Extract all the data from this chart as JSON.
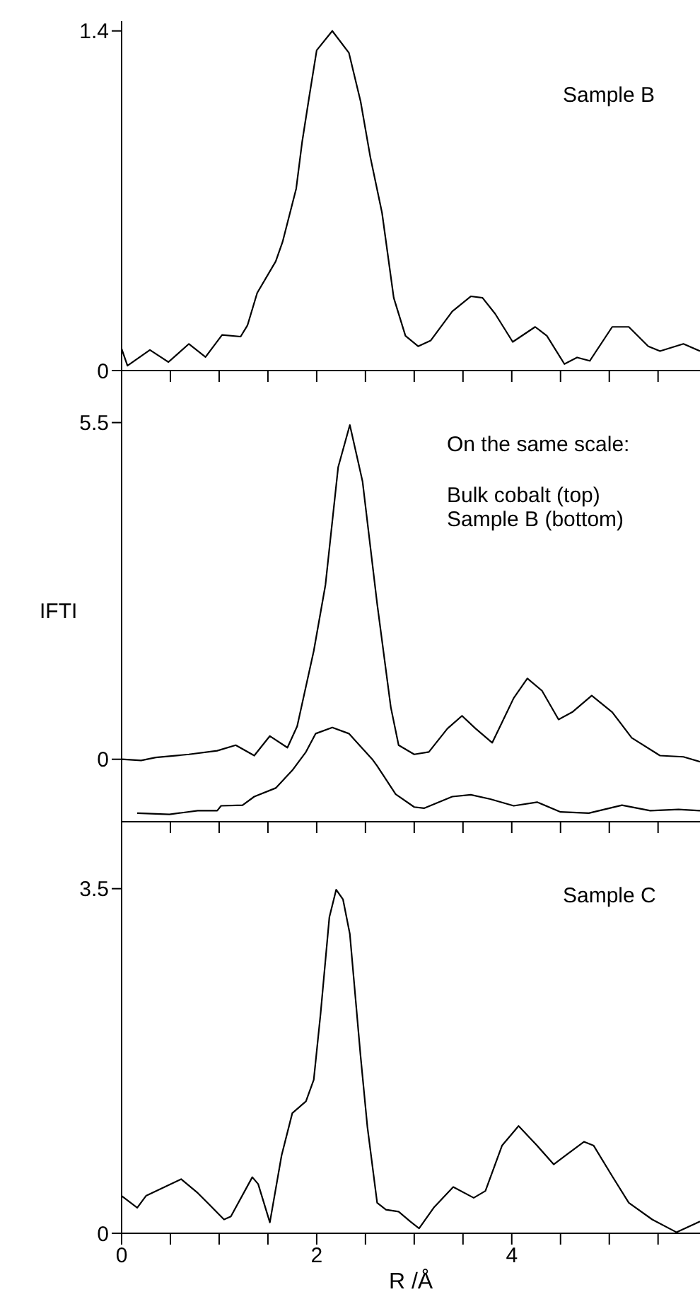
{
  "chart_data": [
    {
      "type": "line",
      "xlim": [
        0,
        5.93
      ],
      "xticks": [
        {
          "value": 0,
          "label": null
        },
        {
          "value": 0.5,
          "label": null
        },
        {
          "value": 1,
          "label": null
        },
        {
          "value": 1.5,
          "label": null
        },
        {
          "value": 2,
          "label": null
        },
        {
          "value": 2.5,
          "label": null
        },
        {
          "value": 3,
          "label": null
        },
        {
          "value": 3.5,
          "label": null
        },
        {
          "value": 4,
          "label": null
        },
        {
          "value": 4.5,
          "label": null
        },
        {
          "value": 5,
          "label": null
        },
        {
          "value": 5.5,
          "label": null
        }
      ],
      "ylim": [
        0,
        1.44
      ],
      "yticks": [
        0,
        1.4
      ],
      "tick_labels": "y",
      "annotations": [
        "Sample B"
      ],
      "series": [
        {
          "color": "#000000",
          "x": [
            0,
            0.06,
            0.29,
            0.48,
            0.69,
            0.86,
            1.03,
            1.22,
            1.29,
            1.39,
            1.58,
            1.65,
            1.79,
            1.85,
            1.92,
            2.0,
            2.16,
            2.33,
            2.45,
            2.55,
            2.67,
            2.79,
            2.91,
            3.04,
            3.17,
            3.39,
            3.58,
            3.7,
            3.83,
            4.01,
            4.24,
            4.36,
            4.54,
            4.67,
            4.8,
            5.03,
            5.2,
            5.4,
            5.52,
            5.76,
            5.93
          ],
          "values": [
            0.09,
            0.02,
            0.085,
            0.035,
            0.11,
            0.056,
            0.147,
            0.14,
            0.186,
            0.32,
            0.45,
            0.53,
            0.75,
            0.94,
            1.12,
            1.32,
            1.4,
            1.31,
            1.11,
            0.88,
            0.65,
            0.3,
            0.143,
            0.1,
            0.124,
            0.244,
            0.306,
            0.3,
            0.234,
            0.118,
            0.18,
            0.143,
            0.027,
            0.054,
            0.04,
            0.18,
            0.18,
            0.1,
            0.08,
            0.11,
            0.08
          ]
        }
      ]
    },
    {
      "type": "line",
      "ylabel": "IFTI",
      "xlim": [
        0,
        5.93
      ],
      "xticks": [
        {
          "value": 0,
          "label": null
        },
        {
          "value": 0.5,
          "label": null
        },
        {
          "value": 1,
          "label": null
        },
        {
          "value": 1.5,
          "label": null
        },
        {
          "value": 2,
          "label": null
        },
        {
          "value": 2.5,
          "label": null
        },
        {
          "value": 3,
          "label": null
        },
        {
          "value": 3.5,
          "label": null
        },
        {
          "value": 4,
          "label": null
        },
        {
          "value": 4.5,
          "label": null
        },
        {
          "value": 5,
          "label": null
        },
        {
          "value": 5.5,
          "label": null
        }
      ],
      "ylim": [
        -1.02,
        6.35
      ],
      "yticks": [
        0,
        5.5
      ],
      "tick_labels": "y",
      "annotations": [
        "On the same scale:",
        "Bulk cobalt (top)",
        "Sample B (bottom)"
      ],
      "series": [
        {
          "color": "#000000",
          "x": [
            0,
            0.2,
            0.35,
            0.69,
            0.98,
            1.17,
            1.36,
            1.52,
            1.7,
            1.8,
            1.97,
            2.09,
            2.22,
            2.34,
            2.47,
            2.62,
            2.76,
            2.84,
            3.0,
            3.15,
            3.34,
            3.49,
            3.63,
            3.8,
            4.02,
            4.16,
            4.31,
            4.48,
            4.62,
            4.82,
            5.03,
            5.23,
            5.52,
            5.76,
            5.93
          ],
          "values": [
            0,
            -0.02,
            0.03,
            0.08,
            0.14,
            0.23,
            0.06,
            0.38,
            0.19,
            0.54,
            1.77,
            2.85,
            4.77,
            5.46,
            4.54,
            2.54,
            0.85,
            0.23,
            0.08,
            0.12,
            0.5,
            0.71,
            0.5,
            0.27,
            1.0,
            1.32,
            1.12,
            0.65,
            0.77,
            1.04,
            0.77,
            0.35,
            0.06,
            0.04,
            -0.04
          ]
        },
        {
          "color": "#000000",
          "x": [
            0.16,
            0.49,
            0.78,
            0.98,
            1.02,
            1.24,
            1.36,
            1.58,
            1.75,
            1.89,
            1.99,
            2.16,
            2.33,
            2.57,
            2.62,
            2.81,
            3.0,
            3.1,
            3.39,
            3.58,
            3.78,
            4.02,
            4.26,
            4.5,
            4.79,
            5.13,
            5.42,
            5.71,
            5.93
          ],
          "values": [
            -0.88,
            -0.9,
            -0.84,
            -0.84,
            -0.76,
            -0.75,
            -0.61,
            -0.47,
            -0.18,
            0.12,
            0.42,
            0.52,
            0.42,
            0.0,
            -0.11,
            -0.57,
            -0.78,
            -0.8,
            -0.61,
            -0.58,
            -0.65,
            -0.76,
            -0.7,
            -0.86,
            -0.88,
            -0.75,
            -0.84,
            -0.82,
            -0.84
          ]
        }
      ]
    },
    {
      "type": "line",
      "xlabel": "R /Å",
      "xlim": [
        0,
        5.93
      ],
      "xticks": [
        0,
        {
          "value": 0.5,
          "label": null
        },
        {
          "value": 1,
          "label": null
        },
        {
          "value": 1.5,
          "label": null
        },
        2,
        {
          "value": 2.5,
          "label": null
        },
        {
          "value": 3,
          "label": null
        },
        {
          "value": 3.5,
          "label": null
        },
        4,
        {
          "value": 4.5,
          "label": null
        },
        {
          "value": 5,
          "label": null
        },
        {
          "value": 5.5,
          "label": null
        }
      ],
      "ylim": [
        0,
        4.18
      ],
      "yticks": [
        0,
        3.5
      ],
      "annotations": [
        "Sample C"
      ],
      "series": [
        {
          "color": "#000000",
          "x": [
            0,
            0.16,
            0.25,
            0.61,
            0.78,
            0.88,
            1.05,
            1.12,
            1.34,
            1.4,
            1.52,
            1.64,
            1.75,
            1.89,
            1.97,
            2.04,
            2.13,
            2.2,
            2.27,
            2.34,
            2.45,
            2.52,
            2.62,
            2.71,
            2.84,
            2.96,
            3.05,
            3.2,
            3.4,
            3.61,
            3.73,
            3.9,
            4.07,
            4.26,
            4.43,
            4.55,
            4.74,
            4.84,
            5.03,
            5.2,
            5.44,
            5.69,
            5.93
          ],
          "values": [
            0.38,
            0.26,
            0.38,
            0.55,
            0.41,
            0.31,
            0.14,
            0.17,
            0.57,
            0.5,
            0.11,
            0.79,
            1.22,
            1.34,
            1.56,
            2.23,
            3.21,
            3.49,
            3.39,
            3.04,
            1.8,
            1.08,
            0.31,
            0.24,
            0.22,
            0.12,
            0.05,
            0.26,
            0.47,
            0.36,
            0.43,
            0.89,
            1.09,
            0.89,
            0.7,
            0.79,
            0.93,
            0.89,
            0.58,
            0.31,
            0.14,
            0.01,
            0.12
          ]
        }
      ]
    }
  ]
}
